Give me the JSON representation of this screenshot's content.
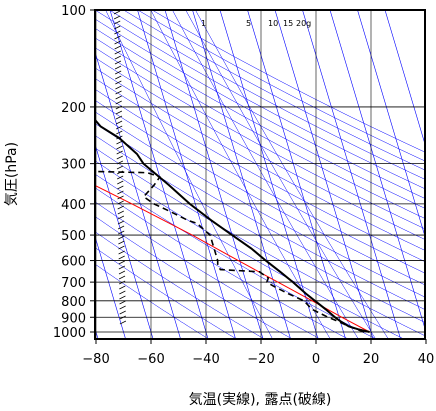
{
  "chart_data": {
    "type": "line",
    "subtype": "skew-t-log-p",
    "xlabel": "気温(実線), 露点(破線)",
    "ylabel": "気圧(hPa)",
    "xlim": [
      -80,
      40
    ],
    "ylim": [
      1050,
      100
    ],
    "y_scale": "log",
    "x_ticks": [
      -80,
      -60,
      -40,
      -20,
      0,
      20,
      40
    ],
    "x_tick_labels": [
      "−80",
      "−60",
      "−40",
      "−20",
      "0",
      "20",
      "40"
    ],
    "y_ticks": [
      100,
      200,
      300,
      400,
      500,
      600,
      700,
      800,
      900,
      1000
    ],
    "mixing_ratio_labels": [
      "1",
      "5",
      "10",
      "15",
      "20g"
    ],
    "colors": {
      "temperature": "#000000",
      "dewpoint": "#000000",
      "parcel": "#ff0000",
      "background_lines": "#0000ff",
      "grid": "#000000"
    },
    "series": [
      {
        "role": "temperature",
        "style": "solid",
        "points": [
          [
            1000,
            19.5
          ],
          [
            980,
            15.5
          ],
          [
            960,
            12.5
          ],
          [
            925,
            10.0
          ],
          [
            900,
            8.5
          ],
          [
            850,
            6.0
          ],
          [
            800,
            3.0
          ],
          [
            760,
            0.5
          ],
          [
            700,
            -3.0
          ],
          [
            650,
            -6.5
          ],
          [
            600,
            -10.5
          ],
          [
            550,
            -14.5
          ],
          [
            500,
            -20.0
          ],
          [
            450,
            -26.0
          ],
          [
            400,
            -32.0
          ],
          [
            350,
            -37.5
          ],
          [
            300,
            -44.5
          ],
          [
            280,
            -45.8
          ],
          [
            250,
            -50.5
          ],
          [
            230,
            -56.0
          ],
          [
            200,
            -60.0
          ],
          [
            180,
            -60.0
          ],
          [
            150,
            -58.0
          ],
          [
            130,
            -60.0
          ],
          [
            115,
            -61.0
          ],
          [
            100,
            -64.0
          ]
        ]
      },
      {
        "role": "dewpoint",
        "style": "dashed",
        "points": [
          [
            1000,
            17.5
          ],
          [
            980,
            15.0
          ],
          [
            960,
            12.5
          ],
          [
            925,
            9.0
          ],
          [
            900,
            6.0
          ],
          [
            850,
            1.0
          ],
          [
            800,
            -1.0
          ],
          [
            760,
            -6.0
          ],
          [
            720,
            -10.5
          ],
          [
            700,
            -12.5
          ],
          [
            680,
            -11.5
          ],
          [
            650,
            -14.0
          ],
          [
            640,
            -28.0
          ],
          [
            620,
            -28.5
          ],
          [
            600,
            -28.0
          ],
          [
            500,
            -28.0
          ],
          [
            460,
            -31.5
          ],
          [
            450,
            -34.5
          ],
          [
            420,
            -40.5
          ],
          [
            400,
            -45.0
          ],
          [
            380,
            -48.0
          ],
          [
            350,
            -43.0
          ],
          [
            330,
            -40.0
          ],
          [
            320,
            -44.0
          ],
          [
            316,
            -72.0
          ]
        ]
      },
      {
        "role": "parcel",
        "style": "solid",
        "points": [
          [
            1000,
            19.5
          ],
          [
            900,
            11.0
          ],
          [
            800,
            2.0
          ],
          [
            700,
            -8.5
          ],
          [
            600,
            -20.5
          ],
          [
            500,
            -34.5
          ],
          [
            400,
            -53.0
          ],
          [
            300,
            -78.0
          ],
          [
            200,
            -115.0
          ]
        ]
      }
    ],
    "wind_barbs_x": -72
  }
}
